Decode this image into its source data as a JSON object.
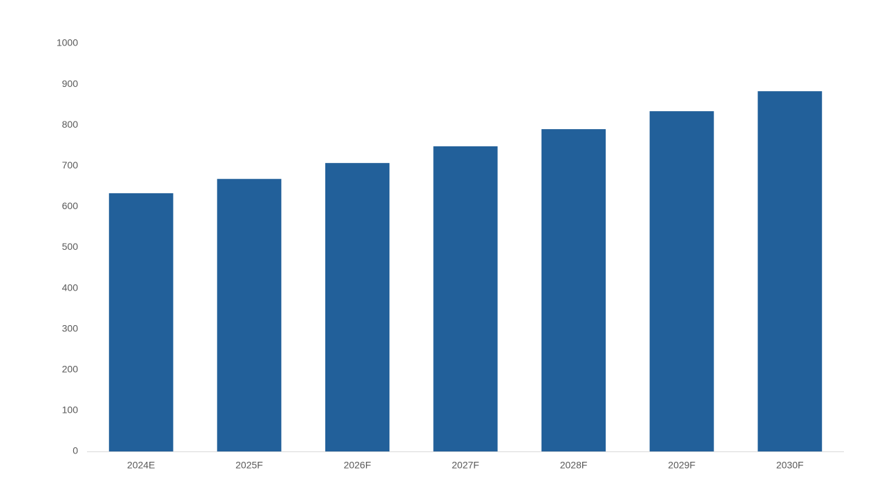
{
  "chart_data": {
    "type": "bar",
    "categories": [
      "2024E",
      "2025F",
      "2026F",
      "2027F",
      "2028F",
      "2029F",
      "2030F"
    ],
    "values": [
      633,
      668,
      707,
      748,
      790,
      834,
      883
    ],
    "color": "#22609a",
    "ylim": [
      0,
      1000
    ],
    "yticks": [
      0,
      100,
      200,
      300,
      400,
      500,
      600,
      700,
      800,
      900,
      1000
    ],
    "grid": false
  }
}
